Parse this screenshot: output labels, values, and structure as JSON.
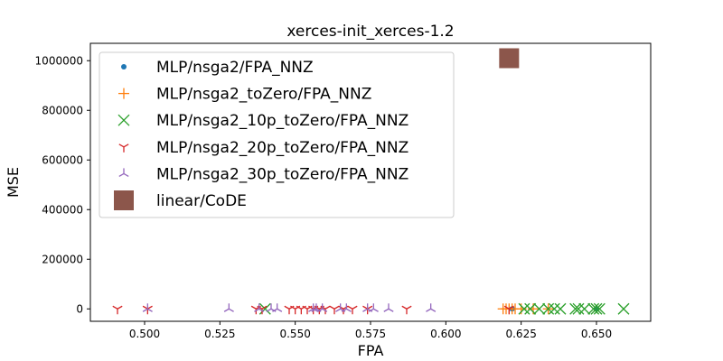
{
  "chart_data": {
    "type": "scatter",
    "title": "xerces-init_xerces-1.2",
    "xlabel": "FPA",
    "ylabel": "MSE",
    "xlim": [
      0.482,
      0.668
    ],
    "ylim": [
      -50000,
      1070000
    ],
    "xticks": [
      "0.500",
      "0.525",
      "0.550",
      "0.575",
      "0.600",
      "0.625",
      "0.650"
    ],
    "yticks": [
      "0",
      "200000",
      "400000",
      "600000",
      "800000",
      "1000000"
    ],
    "xtick_values": [
      0.5,
      0.525,
      0.55,
      0.575,
      0.6,
      0.625,
      0.65
    ],
    "ytick_values": [
      0,
      200000,
      400000,
      600000,
      800000,
      1000000
    ],
    "legend_position": "upper-left",
    "grid": false,
    "series": [
      {
        "name": "MLP/nsga2/FPA_NNZ",
        "marker": "dot",
        "color": "#1f77b4",
        "points": [
          [
            0.622,
            0
          ],
          [
            0.65,
            0
          ]
        ]
      },
      {
        "name": "MLP/nsga2_toZero/FPA_NNZ",
        "marker": "plus",
        "color": "#ff7f0e",
        "points": [
          [
            0.619,
            0
          ],
          [
            0.62,
            0
          ],
          [
            0.621,
            0
          ],
          [
            0.622,
            0
          ],
          [
            0.623,
            0
          ],
          [
            0.625,
            0
          ],
          [
            0.629,
            0
          ],
          [
            0.634,
            0
          ]
        ]
      },
      {
        "name": "MLP/nsga2_10p_toZero/FPA_NNZ",
        "marker": "x",
        "color": "#2ca02c",
        "points": [
          [
            0.54,
            0
          ],
          [
            0.626,
            0
          ],
          [
            0.628,
            0
          ],
          [
            0.631,
            0
          ],
          [
            0.634,
            0
          ],
          [
            0.636,
            0
          ],
          [
            0.638,
            0
          ],
          [
            0.643,
            0
          ],
          [
            0.644,
            0
          ],
          [
            0.646,
            0
          ],
          [
            0.649,
            0
          ],
          [
            0.65,
            0
          ],
          [
            0.651,
            0
          ],
          [
            0.659,
            0
          ]
        ]
      },
      {
        "name": "MLP/nsga2_20p_toZero/FPA_NNZ",
        "marker": "tri_down",
        "color": "#d62728",
        "points": [
          [
            0.491,
            0
          ],
          [
            0.501,
            0
          ],
          [
            0.537,
            0
          ],
          [
            0.539,
            0
          ],
          [
            0.548,
            0
          ],
          [
            0.55,
            0
          ],
          [
            0.552,
            0
          ],
          [
            0.554,
            0
          ],
          [
            0.556,
            0
          ],
          [
            0.558,
            0
          ],
          [
            0.56,
            0
          ],
          [
            0.563,
            0
          ],
          [
            0.566,
            0
          ],
          [
            0.569,
            0
          ],
          [
            0.574,
            0
          ],
          [
            0.587,
            0
          ],
          [
            0.621,
            0
          ]
        ]
      },
      {
        "name": "MLP/nsga2_30p_toZero/FPA_NNZ",
        "marker": "tri_up",
        "color": "#9467bd",
        "points": [
          [
            0.501,
            0
          ],
          [
            0.528,
            0
          ],
          [
            0.538,
            0
          ],
          [
            0.542,
            0
          ],
          [
            0.544,
            0
          ],
          [
            0.556,
            0
          ],
          [
            0.557,
            0
          ],
          [
            0.559,
            0
          ],
          [
            0.565,
            0
          ],
          [
            0.567,
            0
          ],
          [
            0.574,
            0
          ],
          [
            0.576,
            0
          ],
          [
            0.581,
            0
          ],
          [
            0.595,
            0
          ]
        ]
      },
      {
        "name": "linear/CoDE",
        "marker": "square",
        "color": "#8c564b",
        "points": [
          [
            0.621,
            1010000
          ]
        ]
      }
    ]
  }
}
